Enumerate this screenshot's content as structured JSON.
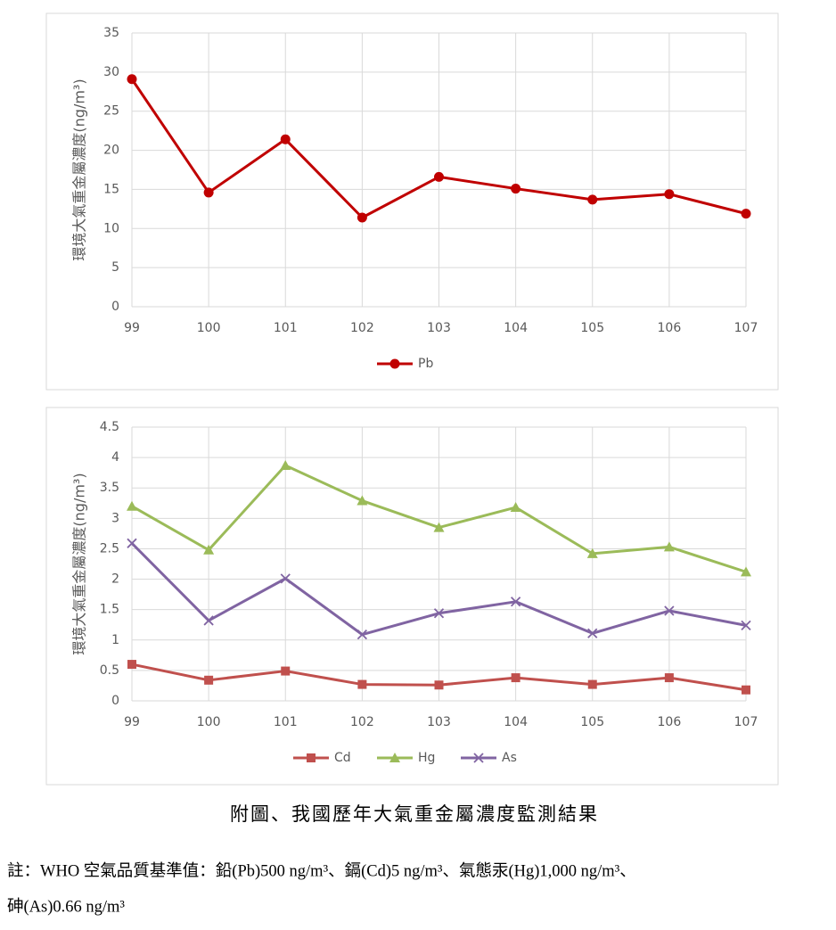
{
  "chart_data": [
    {
      "type": "line",
      "y_label": "環境大氣重金屬濃度(ng/m³)",
      "categories": [
        "99",
        "100",
        "101",
        "102",
        "103",
        "104",
        "105",
        "106",
        "107"
      ],
      "series": [
        {
          "name": "Pb",
          "color": "#c00000",
          "marker": "circle",
          "values": [
            29.1,
            14.6,
            21.4,
            11.4,
            16.6,
            15.1,
            13.7,
            14.4,
            11.9
          ]
        }
      ],
      "ylim": [
        0,
        35
      ],
      "yticks": [
        0,
        5,
        10,
        15,
        20,
        25,
        30,
        35
      ],
      "grid": true,
      "legend": "bottom"
    },
    {
      "type": "line",
      "y_label": "環境大氣重金屬濃度(ng/m³)",
      "categories": [
        "99",
        "100",
        "101",
        "102",
        "103",
        "104",
        "105",
        "106",
        "107"
      ],
      "series": [
        {
          "name": "Cd",
          "color": "#c0504d",
          "marker": "square",
          "values": [
            0.6,
            0.34,
            0.49,
            0.27,
            0.26,
            0.38,
            0.27,
            0.38,
            0.18
          ]
        },
        {
          "name": "Hg",
          "color": "#9bbb59",
          "marker": "triangle",
          "values": [
            3.2,
            2.48,
            3.87,
            3.29,
            2.85,
            3.18,
            2.42,
            2.53,
            2.12
          ]
        },
        {
          "name": "As",
          "color": "#8064a2",
          "marker": "x",
          "values": [
            2.59,
            1.32,
            2.01,
            1.09,
            1.44,
            1.63,
            1.11,
            1.48,
            1.24
          ]
        }
      ],
      "ylim": [
        0,
        4.5
      ],
      "yticks": [
        0,
        0.5,
        1,
        1.5,
        2,
        2.5,
        3,
        3.5,
        4,
        4.5
      ],
      "grid": true,
      "legend": "bottom"
    }
  ],
  "caption": "附圖、我國歷年大氣重金屬濃度監測結果",
  "note": [
    "註：WHO  空氣品質基準值：鉛(Pb)500 ng/m³、鎘(Cd)5 ng/m³、氣態汞(Hg)1,000 ng/m³、",
    "砷(As)0.66 ng/m³"
  ]
}
